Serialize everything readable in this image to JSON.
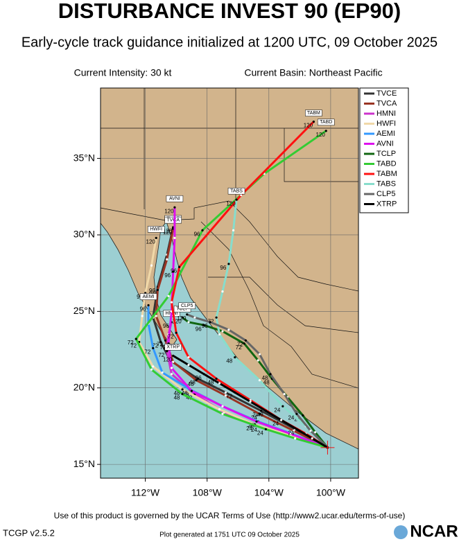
{
  "chart_data": {
    "type": "track-map",
    "title": "DISTURBANCE INVEST 90 (EP90)",
    "subtitle": "Early-cycle track guidance initialized at 1200 UTC, 09 October 2025",
    "intensity": "Current Intensity: 30 kt",
    "basin": "Current Basin: Northeast Pacific",
    "xlim": [
      -114.9,
      -98.2
    ],
    "ylim": [
      14.1,
      39.6
    ],
    "xticks": [
      {
        "value": -112,
        "label": "112°W"
      },
      {
        "value": -108,
        "label": "108°W"
      },
      {
        "value": -104,
        "label": "104°W"
      },
      {
        "value": -100,
        "label": "100°W"
      }
    ],
    "yticks": [
      {
        "value": 15,
        "label": "15°N"
      },
      {
        "value": 20,
        "label": "20°N"
      },
      {
        "value": 25,
        "label": "25°N"
      },
      {
        "value": 30,
        "label": "30°N"
      },
      {
        "value": 35,
        "label": "35°N"
      }
    ],
    "grid": true,
    "forecast_hours": [
      0,
      12,
      24,
      36,
      48,
      60,
      72,
      84,
      96,
      108,
      120
    ],
    "tracks": [
      {
        "name": "TVCE",
        "color": "#333333",
        "lat": [
          16.1,
          17.3,
          18.5,
          19.7,
          20.6,
          21.8,
          23.0,
          24.6,
          26.6,
          28.7,
          30.5
        ],
        "lon": [
          -100.2,
          -102.3,
          -104.5,
          -106.8,
          -108.6,
          -110.4,
          -111.0,
          -111.5,
          -111.2,
          -110.6,
          -110.2
        ]
      },
      {
        "name": "TVCA",
        "color": "#993322",
        "lat": [
          16.1,
          17.2,
          18.3,
          19.5,
          20.5,
          21.7,
          23.1,
          24.7,
          26.4,
          28.4,
          30.4
        ],
        "lon": [
          -100.2,
          -102.4,
          -104.6,
          -106.8,
          -108.7,
          -110.2,
          -110.7,
          -111.3,
          -111.2,
          -110.6,
          -110.2
        ]
      },
      {
        "name": "HMNI",
        "color": "#cc33cc",
        "lat": [
          16.1,
          16.9,
          17.5,
          18.4,
          19.6,
          20.9,
          22.4,
          23.5,
          24.3
        ],
        "lon": [
          -100.2,
          -102.4,
          -104.6,
          -106.9,
          -108.8,
          -110.3,
          -110.6,
          -110.5,
          -110.3
        ]
      },
      {
        "name": "HWFI",
        "color": "#f0d8a8",
        "lat": [
          16.1,
          16.9,
          17.6,
          18.6,
          19.9,
          21.4,
          23.0,
          24.7,
          26.2,
          28.0,
          29.8
        ],
        "lon": [
          -100.2,
          -102.6,
          -104.9,
          -107.2,
          -109.6,
          -111.5,
          -112.4,
          -112.2,
          -112.0,
          -111.6,
          -111.3
        ]
      },
      {
        "name": "AEMI",
        "color": "#3399ff",
        "lat": [
          16.1,
          17.0,
          17.8,
          18.8,
          19.9,
          21.0,
          22.6,
          24.2,
          25.4
        ],
        "lon": [
          -100.2,
          -102.5,
          -104.7,
          -107.0,
          -109.1,
          -110.9,
          -111.5,
          -111.8,
          -111.8
        ]
      },
      {
        "name": "AVNI",
        "color": "#dd11ee",
        "lat": [
          16.1,
          17.0,
          17.8,
          18.8,
          19.8,
          21.3,
          22.9,
          25.0,
          27.6,
          29.8,
          31.8
        ],
        "lon": [
          -100.2,
          -102.6,
          -104.8,
          -107.0,
          -109.0,
          -110.3,
          -110.5,
          -110.3,
          -110.2,
          -110.1,
          -110.1
        ]
      },
      {
        "name": "TCLP",
        "color": "#116611",
        "lat": [
          16.1,
          17.1,
          18.2,
          19.4,
          20.6,
          21.8,
          22.9,
          23.7,
          24.1,
          24.3,
          24.6
        ],
        "lon": [
          -100.2,
          -101.0,
          -101.8,
          -102.8,
          -103.8,
          -104.7,
          -105.6,
          -107.0,
          -108.2,
          -109.2,
          -109.6
        ]
      },
      {
        "name": "TABD",
        "color": "#33cc33",
        "lat": [
          16.1,
          16.7,
          17.3,
          18.3,
          19.6,
          21.2,
          23.2,
          26.0,
          30.3,
          34.0,
          36.8
        ],
        "lon": [
          -100.2,
          -102.3,
          -104.2,
          -107.0,
          -109.6,
          -111.6,
          -112.6,
          -110.5,
          -108.3,
          -104.3,
          -100.3
        ]
      },
      {
        "name": "TABM",
        "color": "#ff1111",
        "lat": [
          16.1,
          17.0,
          17.9,
          19.2,
          20.6,
          22.0,
          23.6,
          25.6,
          27.9,
          32.6,
          37.4
        ],
        "lon": [
          -100.2,
          -101.6,
          -103.2,
          -105.2,
          -107.4,
          -109.2,
          -110.0,
          -110.3,
          -109.8,
          -105.8,
          -101.1
        ]
      },
      {
        "name": "TABS",
        "color": "#88ddcc",
        "lat": [
          16.1,
          17.5,
          18.8,
          20.5,
          22.0,
          23.5,
          24.6,
          26.3,
          28.1,
          30.3,
          32.3
        ],
        "lon": [
          -100.2,
          -101.6,
          -103.1,
          -104.6,
          -106.2,
          -107.2,
          -107.4,
          -107.0,
          -106.6,
          -106.3,
          -106.1
        ]
      },
      {
        "name": "CLP5",
        "color": "#666666",
        "lat": [
          16.1,
          17.2,
          18.3,
          19.6,
          20.9,
          22.2,
          23.1,
          23.8,
          24.3,
          24.6,
          24.8
        ],
        "lon": [
          -100.2,
          -101.3,
          -102.2,
          -103.0,
          -103.9,
          -104.6,
          -105.5,
          -106.6,
          -107.8,
          -108.8,
          -109.3
        ]
      },
      {
        "name": "XTRP",
        "color": "#000000",
        "lat": [
          16.1,
          16.7,
          17.3,
          17.9,
          18.5,
          19.1,
          19.7,
          20.3,
          20.9,
          21.5,
          22.1
        ],
        "lon": [
          -100.2,
          -101.2,
          -102.2,
          -103.2,
          -104.2,
          -105.2,
          -106.2,
          -107.2,
          -108.2,
          -109.2,
          -110.2
        ]
      }
    ],
    "terms": "Use of this product is governed by the UCAR Terms of Use (http://www2.ucar.edu/terms-of-use)",
    "version": "TCGP v2.5.2",
    "generated": "Plot generated at 1751 UTC  09 October 2025",
    "logo": "NCAR"
  }
}
